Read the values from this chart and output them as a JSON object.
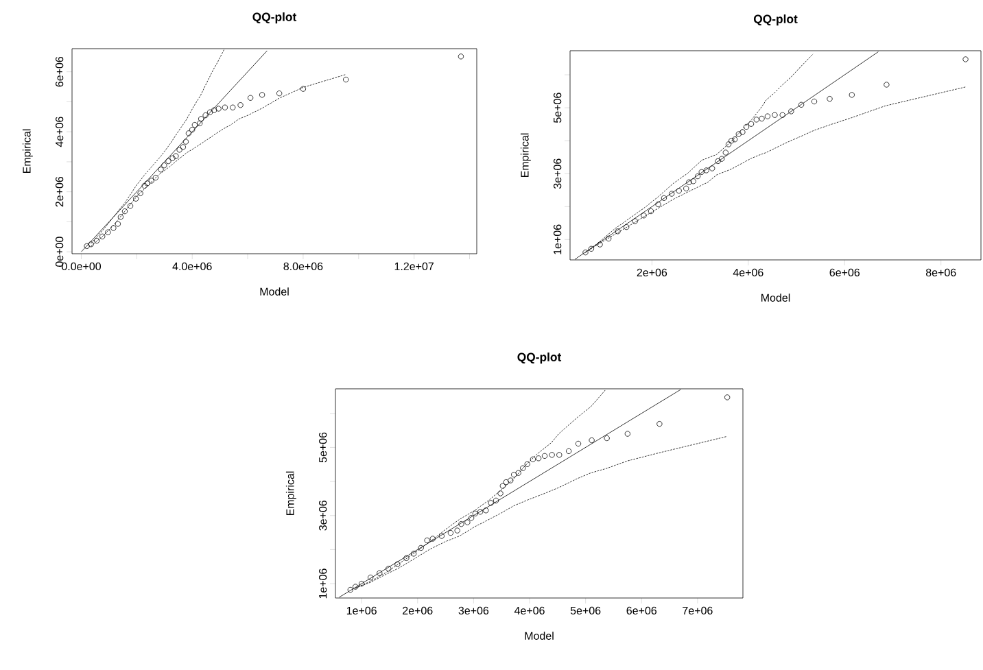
{
  "chart_data": [
    {
      "type": "scatter",
      "title": "QQ-plot",
      "xlabel": "Model",
      "ylabel": "Empirical",
      "xlim": [
        -334000.0,
        14260000.0
      ],
      "ylim": [
        -65000.0,
        6770000.0
      ],
      "xticks": [
        {
          "value": 0,
          "label": "0.0e+00"
        },
        {
          "value": 2000000.0,
          "label": null
        },
        {
          "value": 4000000.0,
          "label": "4.0e+06"
        },
        {
          "value": 6000000.0,
          "label": null
        },
        {
          "value": 8000000.0,
          "label": "8.0e+06"
        },
        {
          "value": 10000000.0,
          "label": null
        },
        {
          "value": 12000000.0,
          "label": "1.2e+07"
        },
        {
          "value": 14000000.0,
          "label": null
        }
      ],
      "yticks": [
        {
          "value": 0,
          "label": "0e+00"
        },
        {
          "value": 1000000.0,
          "label": null
        },
        {
          "value": 2000000.0,
          "label": "2e+06"
        },
        {
          "value": 3000000.0,
          "label": null
        },
        {
          "value": 4000000.0,
          "label": "4e+06"
        },
        {
          "value": 5000000.0,
          "label": null
        },
        {
          "value": 6000000.0,
          "label": "6e+06"
        }
      ],
      "series": [
        {
          "type": "line",
          "color": "#000000",
          "line_style": "solid",
          "x": [
            0,
            6700000.0
          ],
          "values": [
            0,
            6700000.0
          ]
        },
        {
          "type": "line",
          "color": "#000000",
          "line_style": "dashed",
          "x": [
            350000.0,
            760000.0,
            1160000.0,
            1570000.0,
            1970000.0,
            2280000.0,
            2580000.0,
            2890000.0,
            3190000.0,
            3490000.0,
            3800000.0,
            4050000.0,
            4300000.0,
            4510000.0,
            4760000.0,
            4910000.0,
            5160000.0
          ],
          "values": [
            280000.0,
            700000.0,
            1160000.0,
            1630000.0,
            2190000.0,
            2560000.0,
            2880000.0,
            3210000.0,
            3580000.0,
            4000000.0,
            4420000.0,
            4840000.0,
            5210000.0,
            5610000.0,
            6070000.0,
            6310000.0,
            6760000.0
          ]
        },
        {
          "type": "line",
          "color": "#000000",
          "line_style": "dashed",
          "x": [
            350000.0,
            760000.0,
            1160000.0,
            1570000.0,
            1970000.0,
            2380000.0,
            2780000.0,
            3190000.0,
            3490000.0,
            3800000.0,
            4200000.0,
            4510000.0,
            4810000.0,
            5110000.0,
            5420000.0,
            5670000.0,
            6030000.0,
            6530000.0,
            7140000.0,
            8000000.0,
            9540000.0
          ],
          "values": [
            190000.0,
            510000.0,
            880000.0,
            1350000.0,
            1810000.0,
            2190000.0,
            2560000.0,
            2840000.0,
            3070000.0,
            3300000.0,
            3530000.0,
            3720000.0,
            3910000.0,
            4090000.0,
            4250000.0,
            4420000.0,
            4560000.0,
            4790000.0,
            5120000.0,
            5480000.0,
            5910000.0
          ]
        },
        {
          "color": "#000000",
          "marker": "circle",
          "x": [
            200000.0,
            350000.0,
            560000.0,
            760000.0,
            960000.0,
            1160000.0,
            1320000.0,
            1420000.0,
            1570000.0,
            1770000.0,
            1970000.0,
            2130000.0,
            2280000.0,
            2380000.0,
            2530000.0,
            2680000.0,
            2870000.0,
            2990000.0,
            3140000.0,
            3290000.0,
            3410000.0,
            3540000.0,
            3670000.0,
            3770000.0,
            3870000.0,
            4000000.0,
            4090000.0,
            4270000.0,
            4320000.0,
            4480000.0,
            4640000.0,
            4790000.0,
            4950000.0,
            5180000.0,
            5460000.0,
            5740000.0,
            6100000.0,
            6520000.0,
            7140000.0,
            8000000.0,
            9540000.0,
            13690000.0
          ],
          "values": [
            190000.0,
            250000.0,
            370000.0,
            510000.0,
            650000.0,
            790000.0,
            930000.0,
            1160000.0,
            1350000.0,
            1530000.0,
            1770000.0,
            1950000.0,
            2200000.0,
            2280000.0,
            2370000.0,
            2470000.0,
            2740000.0,
            2880000.0,
            3020000.0,
            3120000.0,
            3190000.0,
            3400000.0,
            3490000.0,
            3670000.0,
            3950000.0,
            4070000.0,
            4230000.0,
            4280000.0,
            4430000.0,
            4550000.0,
            4650000.0,
            4720000.0,
            4770000.0,
            4810000.0,
            4810000.0,
            4890000.0,
            5130000.0,
            5230000.0,
            5280000.0,
            5430000.0,
            5740000.0,
            6510000.0
          ]
        }
      ]
    },
    {
      "type": "scatter",
      "title": "QQ-plot",
      "xlabel": "Model",
      "ylabel": "Empirical",
      "xlim": [
        300000.0,
        8830000.0
      ],
      "ylim": [
        383000.0,
        6730000.0
      ],
      "xticks": [
        {
          "value": 2000000.0,
          "label": "2e+06"
        },
        {
          "value": 4000000.0,
          "label": "4e+06"
        },
        {
          "value": 6000000.0,
          "label": "6e+06"
        },
        {
          "value": 8000000.0,
          "label": "8e+06"
        }
      ],
      "yticks": [
        {
          "value": 1000000.0,
          "label": "1e+06"
        },
        {
          "value": 2000000.0,
          "label": null
        },
        {
          "value": 3000000.0,
          "label": "3e+06"
        },
        {
          "value": 4000000.0,
          "label": null
        },
        {
          "value": 5000000.0,
          "label": "5e+06"
        },
        {
          "value": 6000000.0,
          "label": null
        }
      ],
      "series": [
        {
          "type": "line",
          "color": "#000000",
          "line_style": "solid",
          "x": [
            400000.0,
            6700000.0
          ],
          "values": [
            400000.0,
            6700000.0
          ]
        },
        {
          "type": "line",
          "color": "#000000",
          "line_style": "dashed",
          "x": [
            620000.0,
            920000.0,
            1230000.0,
            1530000.0,
            1830000.0,
            2130000.0,
            2440000.0,
            2740000.0,
            3040000.0,
            3340000.0,
            3650000.0,
            3890000.0,
            4070000.0,
            4250000.0,
            4370000.0,
            4540000.0,
            4690000.0,
            4880000.0,
            5090000.0,
            5350000.0
          ],
          "values": [
            610000.0,
            940000.0,
            1330000.0,
            1640000.0,
            1950000.0,
            2300000.0,
            2700000.0,
            3010000.0,
            3410000.0,
            3580000.0,
            3980000.0,
            4370000.0,
            4640000.0,
            4970000.0,
            5230000.0,
            5450000.0,
            5670000.0,
            5920000.0,
            6250000.0,
            6640000.0
          ]
        },
        {
          "type": "line",
          "color": "#000000",
          "line_style": "dashed",
          "x": [
            620000.0,
            920000.0,
            1230000.0,
            1530000.0,
            1830000.0,
            2130000.0,
            2440000.0,
            2740000.0,
            3160000.0,
            3340000.0,
            3650000.0,
            3890000.0,
            4070000.0,
            4220000.0,
            4370000.0,
            4540000.0,
            4690000.0,
            4880000.0,
            5090000.0,
            5360000.0,
            5690000.0,
            6150000.0,
            6850000.0,
            8510000.0
          ],
          "values": [
            610000.0,
            890000.0,
            1160000.0,
            1420000.0,
            1690000.0,
            1950000.0,
            2220000.0,
            2440000.0,
            2740000.0,
            2960000.0,
            3140000.0,
            3330000.0,
            3470000.0,
            3560000.0,
            3640000.0,
            3760000.0,
            3870000.0,
            4000000.0,
            4130000.0,
            4310000.0,
            4480000.0,
            4700000.0,
            5060000.0,
            5630000.0
          ]
        },
        {
          "color": "#000000",
          "marker": "circle",
          "x": [
            620000.0,
            740000.0,
            920000.0,
            1100000.0,
            1290000.0,
            1470000.0,
            1650000.0,
            1830000.0,
            1980000.0,
            2130000.0,
            2250000.0,
            2410000.0,
            2560000.0,
            2710000.0,
            2770000.0,
            2860000.0,
            2950000.0,
            3030000.0,
            3130000.0,
            3250000.0,
            3370000.0,
            3450000.0,
            3530000.0,
            3590000.0,
            3650000.0,
            3720000.0,
            3800000.0,
            3880000.0,
            3960000.0,
            4060000.0,
            4170000.0,
            4280000.0,
            4400000.0,
            4550000.0,
            4710000.0,
            4890000.0,
            5100000.0,
            5370000.0,
            5690000.0,
            6150000.0,
            6870000.0,
            8510000.0
          ],
          "values": [
            610000.0,
            720000.0,
            850000.0,
            1030000.0,
            1250000.0,
            1380000.0,
            1560000.0,
            1730000.0,
            1860000.0,
            2070000.0,
            2260000.0,
            2390000.0,
            2480000.0,
            2550000.0,
            2740000.0,
            2770000.0,
            2920000.0,
            3050000.0,
            3100000.0,
            3160000.0,
            3380000.0,
            3450000.0,
            3640000.0,
            3890000.0,
            4000000.0,
            4040000.0,
            4200000.0,
            4260000.0,
            4420000.0,
            4510000.0,
            4640000.0,
            4670000.0,
            4740000.0,
            4780000.0,
            4780000.0,
            4890000.0,
            5090000.0,
            5190000.0,
            5270000.0,
            5390000.0,
            5700000.0,
            6470000.0
          ]
        }
      ]
    },
    {
      "type": "scatter",
      "title": "QQ-plot",
      "xlabel": "Model",
      "ylabel": "Empirical",
      "xlim": [
        533000.0,
        7810000.0
      ],
      "ylim": [
        579000.0,
        6720000.0
      ],
      "xticks": [
        {
          "value": 1000000.0,
          "label": "1e+06"
        },
        {
          "value": 2000000.0,
          "label": "2e+06"
        },
        {
          "value": 3000000.0,
          "label": "3e+06"
        },
        {
          "value": 4000000.0,
          "label": "4e+06"
        },
        {
          "value": 5000000.0,
          "label": "5e+06"
        },
        {
          "value": 6000000.0,
          "label": "6e+06"
        },
        {
          "value": 7000000.0,
          "label": "7e+06"
        }
      ],
      "yticks": [
        {
          "value": 1000000.0,
          "label": "1e+06"
        },
        {
          "value": 2000000.0,
          "label": null
        },
        {
          "value": 3000000.0,
          "label": "3e+06"
        },
        {
          "value": 4000000.0,
          "label": null
        },
        {
          "value": 5000000.0,
          "label": "5e+06"
        },
        {
          "value": 6000000.0,
          "label": null
        }
      ],
      "series": [
        {
          "type": "line",
          "color": "#000000",
          "line_style": "solid",
          "x": [
            600000.0,
            6700000.0
          ],
          "values": [
            600000.0,
            6700000.0
          ]
        },
        {
          "type": "line",
          "color": "#000000",
          "line_style": "dashed",
          "x": [
            890000.0,
            1160000.0,
            1420000.0,
            1690000.0,
            1960000.0,
            2220000.0,
            2490000.0,
            2750000.0,
            3020000.0,
            3280000.0,
            3500000.0,
            3710000.0,
            3920000.0,
            4130000.0,
            4270000.0,
            4390000.0,
            4520000.0,
            4860000.0,
            5090000.0,
            5350000.0
          ],
          "values": [
            870000.0,
            1070000.0,
            1310000.0,
            1610000.0,
            1920000.0,
            2230000.0,
            2580000.0,
            2890000.0,
            3150000.0,
            3460000.0,
            3760000.0,
            4070000.0,
            4460000.0,
            4800000.0,
            4980000.0,
            5140000.0,
            5400000.0,
            5890000.0,
            6190000.0,
            6680000.0
          ]
        },
        {
          "type": "line",
          "color": "#000000",
          "line_style": "dashed",
          "x": [
            890000.0,
            1160000.0,
            1420000.0,
            1690000.0,
            1960000.0,
            2220000.0,
            2490000.0,
            2750000.0,
            3020000.0,
            3280000.0,
            3500000.0,
            3710000.0,
            3970000.0,
            4240000.0,
            4520000.0,
            4860000.0,
            5090000.0,
            5370000.0,
            5740000.0,
            6310000.0,
            7520000.0
          ],
          "values": [
            870000.0,
            1040000.0,
            1260000.0,
            1480000.0,
            1750000.0,
            2010000.0,
            2230000.0,
            2400000.0,
            2670000.0,
            2890000.0,
            3080000.0,
            3280000.0,
            3460000.0,
            3630000.0,
            3820000.0,
            4090000.0,
            4250000.0,
            4380000.0,
            4600000.0,
            4840000.0,
            5320000.0
          ]
        },
        {
          "color": "#000000",
          "marker": "circle",
          "x": [
            800000.0,
            890000.0,
            1000000.0,
            1160000.0,
            1320000.0,
            1480000.0,
            1640000.0,
            1800000.0,
            1930000.0,
            2060000.0,
            2170000.0,
            2270000.0,
            2430000.0,
            2590000.0,
            2710000.0,
            2780000.0,
            2890000.0,
            2960000.0,
            3030000.0,
            3120000.0,
            3220000.0,
            3310000.0,
            3400000.0,
            3480000.0,
            3520000.0,
            3580000.0,
            3660000.0,
            3720000.0,
            3800000.0,
            3880000.0,
            3960000.0,
            4060000.0,
            4160000.0,
            4270000.0,
            4400000.0,
            4530000.0,
            4700000.0,
            4870000.0,
            5110000.0,
            5380000.0,
            5750000.0,
            6320000.0,
            7530000.0
          ],
          "values": [
            820000.0,
            910000.0,
            1000000.0,
            1180000.0,
            1310000.0,
            1440000.0,
            1570000.0,
            1750000.0,
            1880000.0,
            2050000.0,
            2270000.0,
            2320000.0,
            2400000.0,
            2490000.0,
            2560000.0,
            2750000.0,
            2800000.0,
            2930000.0,
            3060000.0,
            3110000.0,
            3150000.0,
            3370000.0,
            3440000.0,
            3650000.0,
            3870000.0,
            3980000.0,
            4030000.0,
            4200000.0,
            4250000.0,
            4390000.0,
            4510000.0,
            4650000.0,
            4680000.0,
            4750000.0,
            4780000.0,
            4780000.0,
            4890000.0,
            5110000.0,
            5210000.0,
            5270000.0,
            5400000.0,
            5690000.0,
            6470000.0
          ]
        }
      ]
    }
  ]
}
